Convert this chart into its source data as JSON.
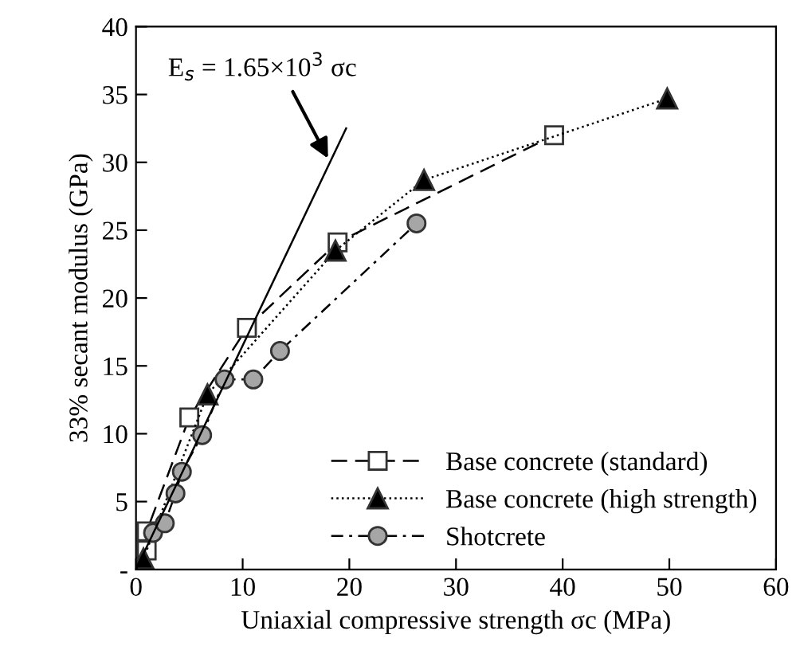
{
  "chart_data": {
    "type": "line",
    "xlabel": "Uniaxial compressive strength σc (MPa)",
    "ylabel": "33% secant modulus (GPa)",
    "xlim": [
      0,
      60
    ],
    "xticks": [
      0,
      10,
      20,
      30,
      40,
      50,
      60
    ],
    "ylim": [
      0,
      40
    ],
    "yticks": [
      {
        "value": 0,
        "label": "-"
      },
      5,
      10,
      15,
      20,
      25,
      30,
      35,
      40
    ],
    "grid": false,
    "legend": "bottom right",
    "series": [
      {
        "name": "Base concrete (standard)",
        "marker": "square",
        "line_style": "dashed",
        "color": "#ffffff",
        "x": [
          0.15,
          1.0,
          1.0,
          5.0,
          10.4,
          18.9,
          39.2
        ],
        "values": [
          0.2,
          1.4,
          2.8,
          11.2,
          17.8,
          24.1,
          32.0
        ]
      },
      {
        "name": "Base concrete (high strength)",
        "marker": "triangle",
        "line_style": "dotted",
        "color": "#000000",
        "x": [
          0.4,
          0.7,
          6.7,
          18.7,
          27.0,
          49.8
        ],
        "values": [
          0.0,
          0.8,
          12.9,
          23.5,
          28.7,
          34.7
        ]
      },
      {
        "name": "Shotcrete",
        "marker": "circle",
        "line_style": "dashdot",
        "color": "#a6a6a6",
        "x": [
          1.6,
          2.7,
          3.7,
          4.3,
          6.2,
          8.3,
          11.0,
          13.5,
          26.3
        ],
        "values": [
          2.7,
          3.4,
          5.6,
          7.2,
          9.9,
          14.0,
          14.0,
          16.1,
          25.5
        ]
      },
      {
        "marker": "none",
        "line_style": "solid",
        "color": "#000000",
        "x": [
          0,
          19.7
        ],
        "values": [
          0,
          32.5
        ]
      }
    ],
    "annotations": [
      "E$_{s}$ = 1.65×10$^{3}$ σc"
    ]
  }
}
